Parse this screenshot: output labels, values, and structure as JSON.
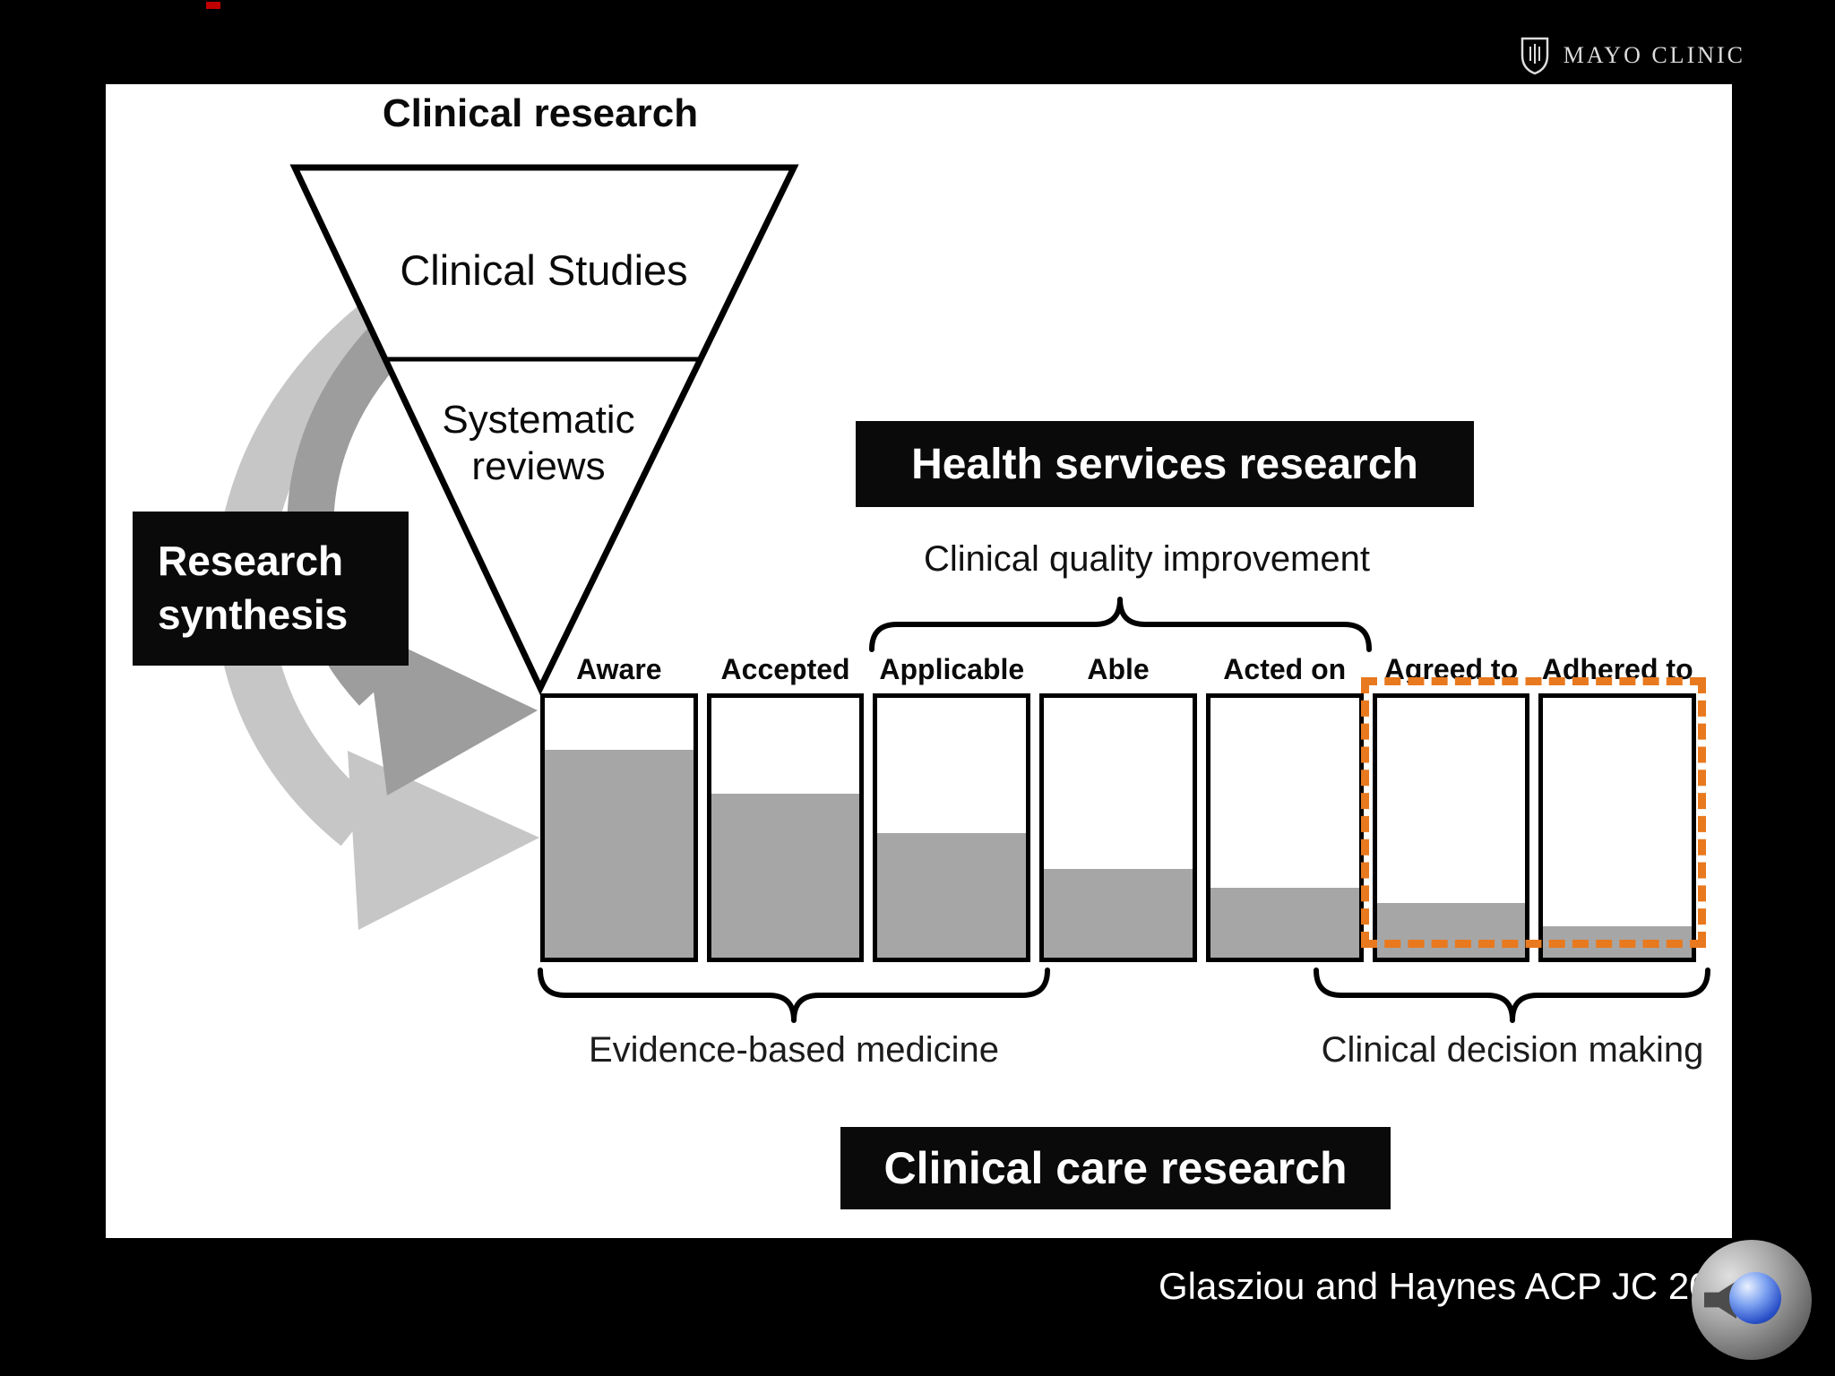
{
  "header": {
    "logo_text": "MAYO CLINIC"
  },
  "funnel": {
    "title": "Clinical research",
    "section1": "Clinical Studies",
    "section2": "Systematic reviews"
  },
  "callouts": {
    "research_synthesis": "Research synthesis",
    "health_services_research": "Health services research",
    "clinical_quality_improvement": "Clinical quality improvement",
    "clinical_care_research": "Clinical care research"
  },
  "braces": {
    "evidence_based_medicine": "Evidence-based medicine",
    "clinical_decision_making": "Clinical decision making"
  },
  "chart_data": {
    "type": "bar",
    "categories": [
      "Aware",
      "Accepted",
      "Applicable",
      "Able",
      "Acted on",
      "Agreed to",
      "Adhered to"
    ],
    "values": [
      0.8,
      0.63,
      0.48,
      0.34,
      0.27,
      0.21,
      0.12
    ],
    "ylim": [
      0,
      1
    ],
    "bar_fill_color": "#a6a6a6",
    "bar_border_color": "#000000",
    "highlight": {
      "categories": [
        "Agreed to",
        "Adhered to"
      ],
      "color": "#e8791e",
      "style": "dashed"
    },
    "grouping_labels": {
      "top": {
        "label": "Clinical quality improvement",
        "covers": [
          "Applicable",
          "Able",
          "Acted on"
        ]
      },
      "bottom_left": {
        "label": "Evidence-based medicine",
        "covers": [
          "Aware",
          "Accepted",
          "Applicable"
        ]
      },
      "bottom_right": {
        "label": "Clinical decision making",
        "covers": [
          "Agreed to",
          "Adhered to"
        ]
      }
    }
  },
  "citation": "Glasziou and Haynes ACP JC 2005",
  "colors": {
    "slide_background": "#000000",
    "panel_background": "#ffffff",
    "callout_background": "#0a0a0a",
    "highlight_orange": "#e8791e",
    "arrow_light_gray": "#c6c6c6",
    "arrow_dark_gray": "#9d9d9d"
  }
}
